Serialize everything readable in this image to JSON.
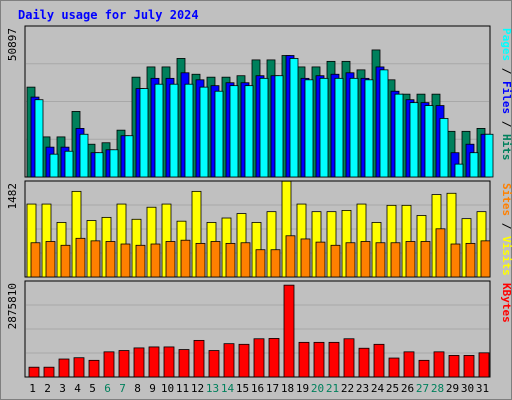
{
  "chart_data": [
    {
      "type": "bar",
      "title": "Daily usage for July 2024",
      "ylabel_parts": [
        "Pages",
        "Files",
        "Hits"
      ],
      "y_max_label": "50897",
      "ylim": [
        0,
        50897
      ],
      "categories": [
        "1",
        "2",
        "3",
        "4",
        "5",
        "6",
        "7",
        "8",
        "9",
        "10",
        "11",
        "12",
        "13",
        "14",
        "15",
        "16",
        "17",
        "18",
        "19",
        "20",
        "21",
        "22",
        "23",
        "24",
        "25",
        "26",
        "27",
        "28",
        "29",
        "30",
        "31"
      ],
      "weekend_days": [
        "6",
        "7",
        "13",
        "14",
        "20",
        "21",
        "27",
        "28"
      ],
      "series": [
        {
          "name": "Hits",
          "color": "#00805c",
          "values": [
            30700,
            13700,
            13700,
            22400,
            11200,
            11700,
            16000,
            34100,
            37600,
            37600,
            40500,
            35100,
            34100,
            34100,
            34600,
            40000,
            40000,
            41500,
            37600,
            37600,
            39500,
            39500,
            36600,
            43400,
            33200,
            28300,
            28300,
            28300,
            15600,
            15600,
            16600
          ]
        },
        {
          "name": "Files",
          "color": "#0000ff",
          "values": [
            27300,
            10200,
            10200,
            16600,
            8300,
            9300,
            14100,
            30200,
            33700,
            33700,
            35600,
            33200,
            31200,
            32200,
            32200,
            34600,
            34600,
            41500,
            33700,
            34600,
            35100,
            35600,
            33700,
            37600,
            29300,
            26400,
            25400,
            24400,
            8300,
            11200,
            14600
          ]
        },
        {
          "name": "Pages",
          "color": "#00ffff",
          "values": [
            26400,
            7800,
            8800,
            14600,
            8300,
            9300,
            14100,
            30200,
            31700,
            31700,
            31700,
            30700,
            29300,
            31200,
            31200,
            33700,
            34600,
            40500,
            33200,
            33700,
            33700,
            33700,
            33200,
            36600,
            28300,
            25400,
            24400,
            20000,
            4400,
            8300,
            14600
          ]
        }
      ]
    },
    {
      "type": "bar",
      "ylabel_parts": [
        "Sites",
        "Visits"
      ],
      "y_max_label": "1482",
      "ylim": [
        0,
        1482
      ],
      "series": [
        {
          "name": "Visits",
          "color": "#ffff00",
          "values": [
            1150,
            1150,
            860,
            1350,
            890,
            940,
            1150,
            910,
            1100,
            1150,
            880,
            1350,
            860,
            930,
            1000,
            860,
            1030,
            1510,
            1150,
            1030,
            1030,
            1050,
            1150,
            860,
            1130,
            1130,
            970,
            1300,
            1320,
            920,
            1030
          ]
        },
        {
          "name": "Sites",
          "color": "#ff8000",
          "values": [
            540,
            560,
            500,
            610,
            570,
            560,
            520,
            500,
            520,
            560,
            580,
            530,
            560,
            530,
            540,
            430,
            430,
            650,
            600,
            550,
            500,
            540,
            560,
            540,
            540,
            560,
            560,
            760,
            520,
            530,
            570
          ]
        }
      ]
    },
    {
      "type": "bar",
      "ylabel_parts": [
        "KBytes"
      ],
      "y_max_label": "2875810",
      "ylim": [
        0,
        2875810
      ],
      "series": [
        {
          "name": "KBytes",
          "color": "#ff0000",
          "values": [
            300000,
            300000,
            550000,
            590000,
            510000,
            770000,
            810000,
            890000,
            920000,
            920000,
            840000,
            1120000,
            810000,
            1020000,
            1000000,
            1170000,
            1180000,
            2810000,
            1060000,
            1060000,
            1060000,
            1170000,
            880000,
            1000000,
            580000,
            770000,
            510000,
            770000,
            660000,
            660000,
            740000
          ]
        }
      ]
    }
  ]
}
